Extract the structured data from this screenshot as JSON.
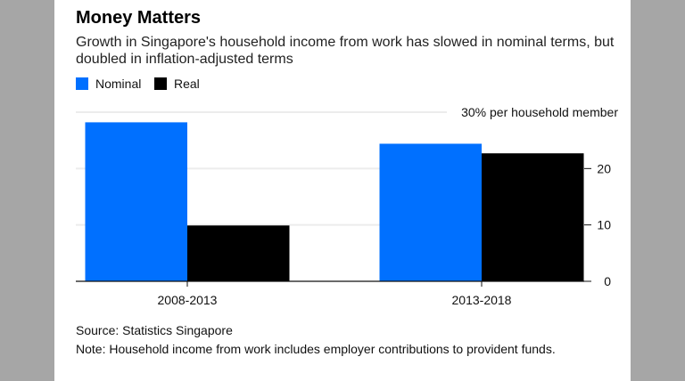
{
  "title": "Money Matters",
  "subtitle": "Growth in Singapore's household income from work has slowed in nominal terms, but doubled in inflation-adjusted terms",
  "source": "Source: Statistics Singapore",
  "note": "Note: Household income from work includes employer contributions to provident funds.",
  "chart_data": {
    "type": "bar",
    "categories": [
      "2008-2013",
      "2013-2018"
    ],
    "series": [
      {
        "name": "Nominal",
        "color": "#0070ff",
        "values": [
          28.2,
          24.4
        ]
      },
      {
        "name": "Real",
        "color": "#000000",
        "values": [
          9.9,
          22.7
        ]
      }
    ],
    "ylabel": "30% per household member",
    "yticks": [
      0,
      10,
      20
    ],
    "ytick_labels": [
      "0",
      "10",
      "20"
    ],
    "ylim": [
      0,
      30
    ],
    "grid": true,
    "legend": "top-left"
  }
}
